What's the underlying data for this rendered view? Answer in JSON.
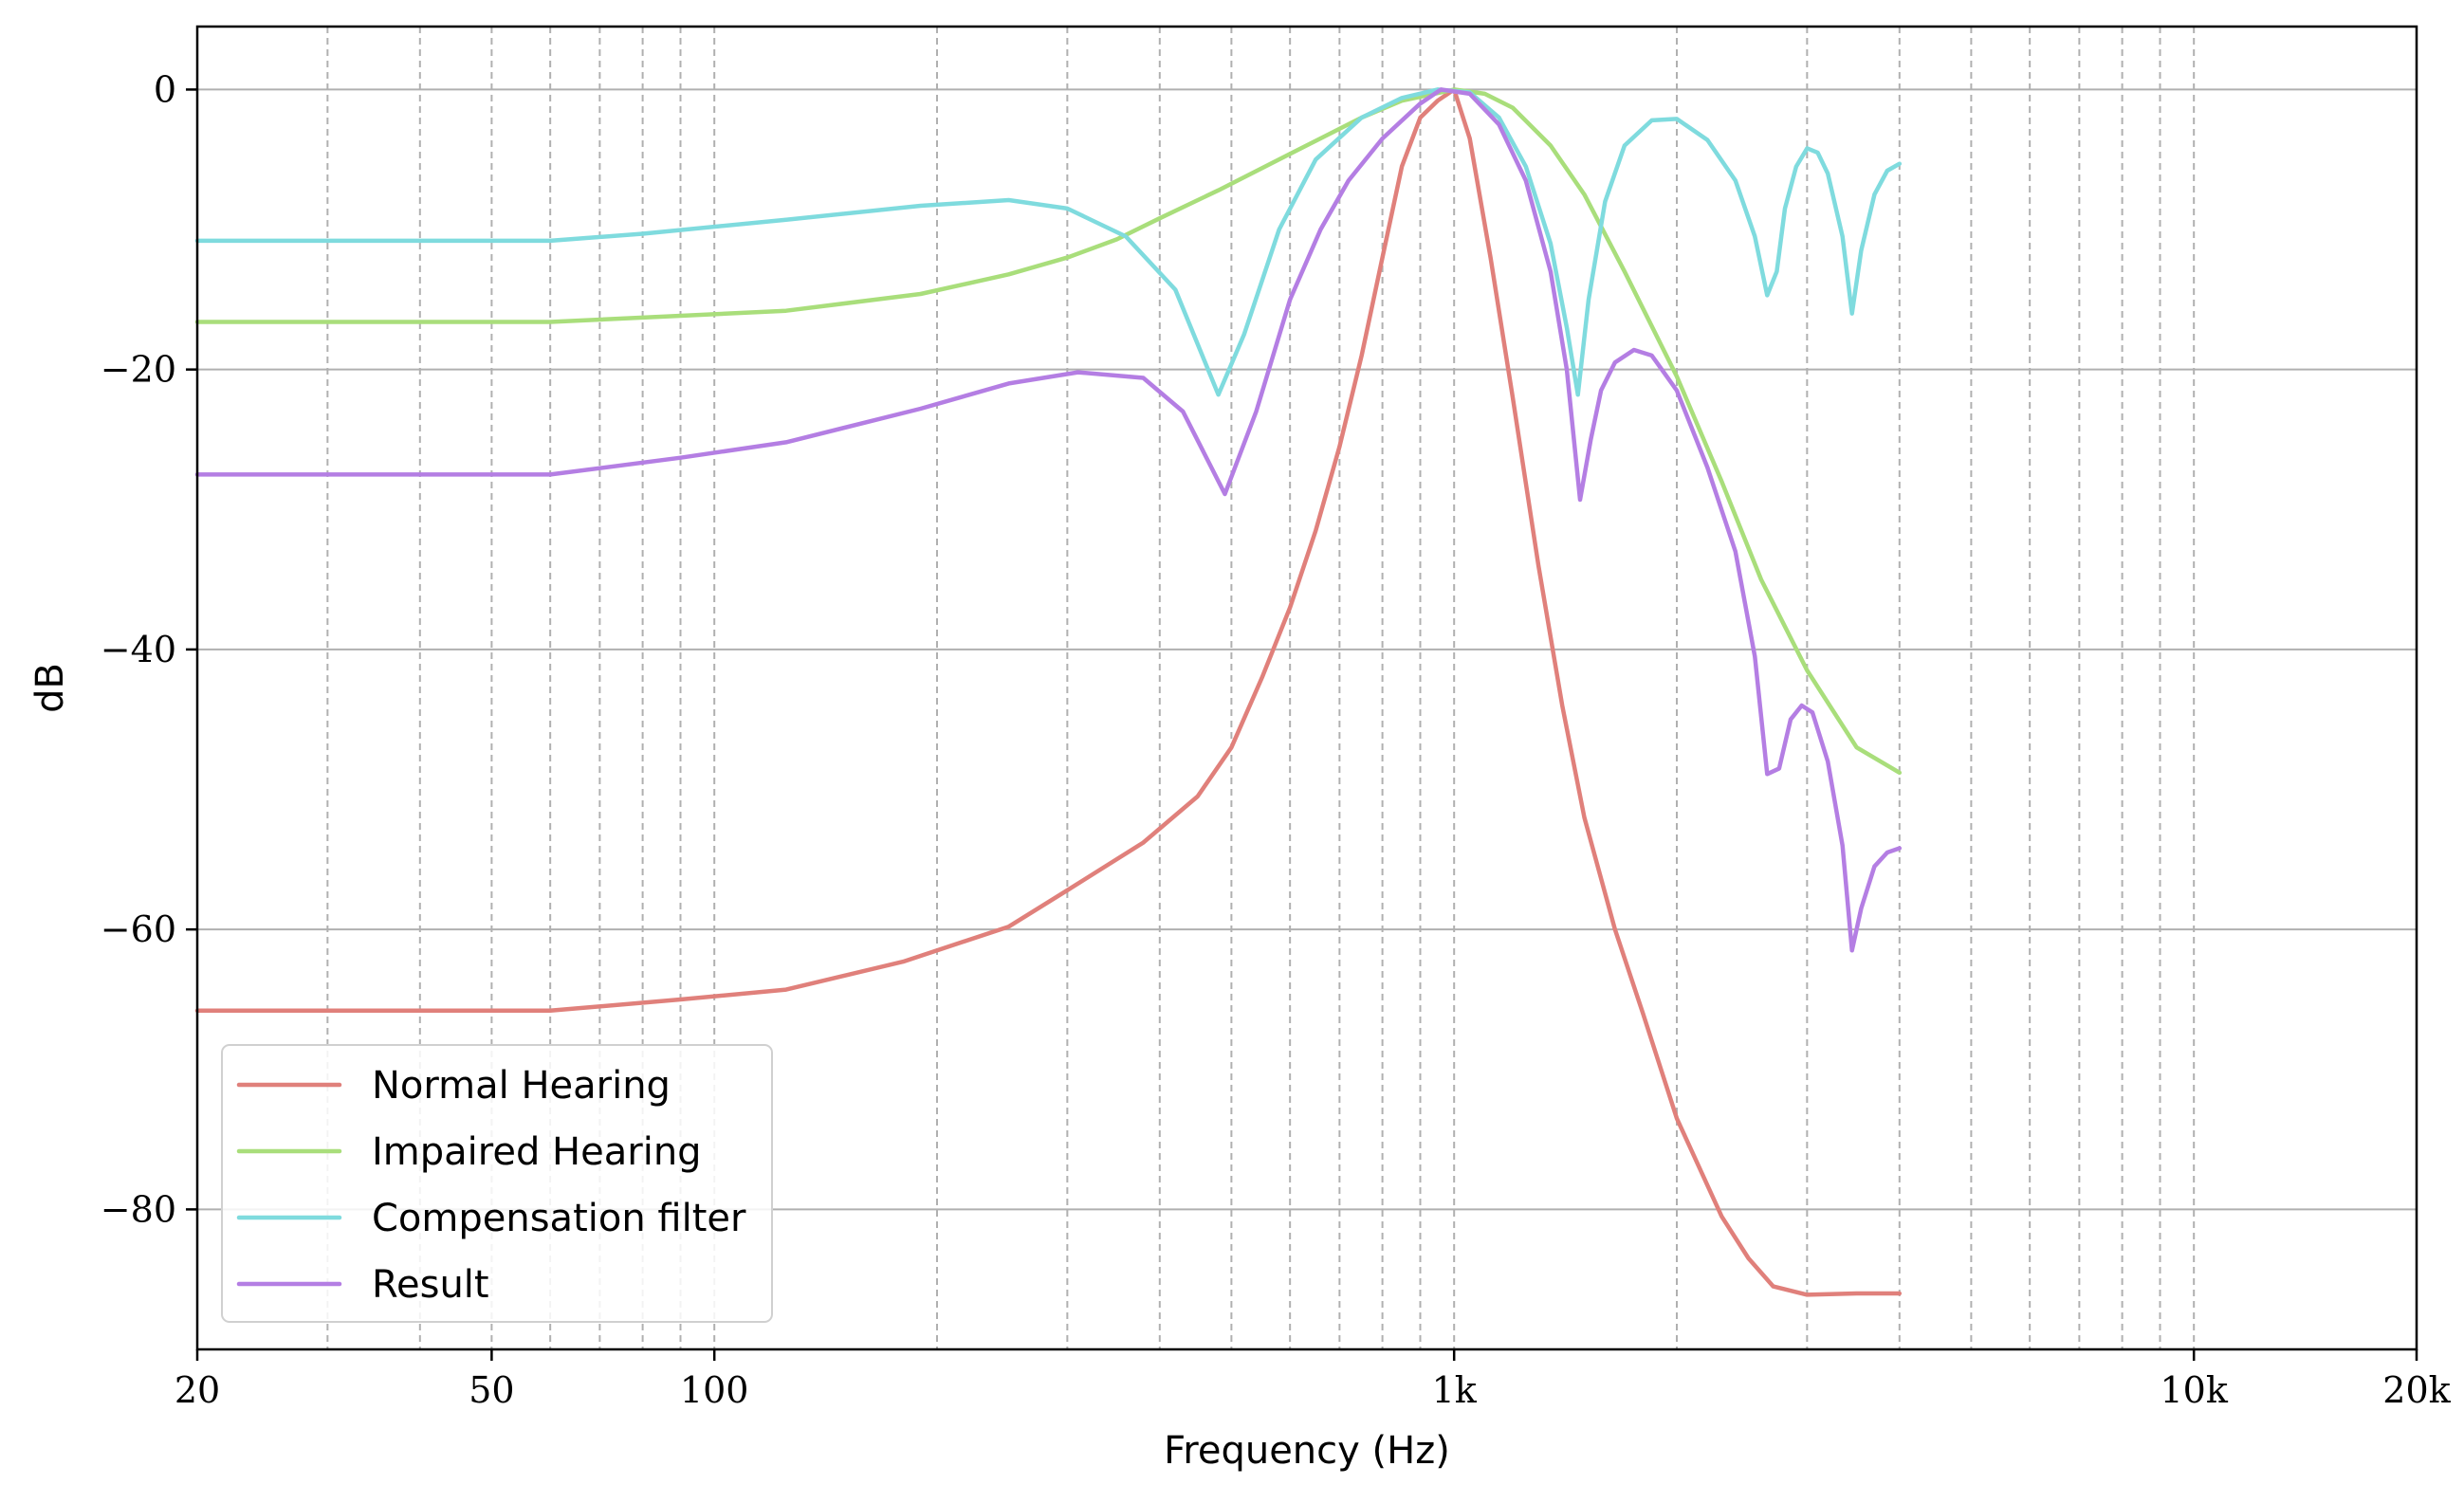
{
  "chart_data": {
    "type": "line",
    "xlabel": "Frequency (Hz)",
    "ylabel": "dB",
    "xscale": "log",
    "xlim": [
      20,
      20000
    ],
    "ylim": [
      -90,
      4.5
    ],
    "x_ticks": [
      {
        "value": 20,
        "label": "20"
      },
      {
        "value": 50,
        "label": "50"
      },
      {
        "value": 100,
        "label": "100"
      },
      {
        "value": 1000,
        "label": "1k"
      },
      {
        "value": 10000,
        "label": "10k"
      },
      {
        "value": 20000,
        "label": "20k"
      }
    ],
    "y_ticks": [
      {
        "value": 0,
        "label": "0"
      },
      {
        "value": -20,
        "label": "−20"
      },
      {
        "value": -40,
        "label": "−40"
      },
      {
        "value": -60,
        "label": "−60"
      },
      {
        "value": -80,
        "label": "−80"
      }
    ],
    "grid": {
      "x_minor_dashed": true,
      "y_major": true
    },
    "legend_position": "lower-left",
    "series": [
      {
        "name": "Normal Hearing",
        "color": "#e0807b",
        "points": [
          [
            20,
            -65.8
          ],
          [
            60,
            -65.8
          ],
          [
            90,
            -65
          ],
          [
            125,
            -64.3
          ],
          [
            180,
            -62.3
          ],
          [
            250,
            -59.8
          ],
          [
            300,
            -57.2
          ],
          [
            380,
            -53.8
          ],
          [
            450,
            -50.5
          ],
          [
            500,
            -47
          ],
          [
            550,
            -42
          ],
          [
            600,
            -37
          ],
          [
            650,
            -31.5
          ],
          [
            700,
            -25.5
          ],
          [
            750,
            -19
          ],
          [
            800,
            -12
          ],
          [
            850,
            -5.5
          ],
          [
            900,
            -2
          ],
          [
            950,
            -0.8
          ],
          [
            1000,
            0
          ],
          [
            1050,
            -3.5
          ],
          [
            1120,
            -12
          ],
          [
            1200,
            -22
          ],
          [
            1300,
            -34
          ],
          [
            1400,
            -44
          ],
          [
            1500,
            -52
          ],
          [
            1650,
            -60
          ],
          [
            1800,
            -66
          ],
          [
            2000,
            -73.5
          ],
          [
            2300,
            -80.5
          ],
          [
            2500,
            -83.5
          ],
          [
            2700,
            -85.5
          ],
          [
            3000,
            -86.1
          ],
          [
            3500,
            -86
          ],
          [
            4000,
            -86
          ]
        ]
      },
      {
        "name": "Impaired Hearing",
        "color": "#a9de7b",
        "points": [
          [
            20,
            -16.6
          ],
          [
            60,
            -16.6
          ],
          [
            125,
            -15.8
          ],
          [
            190,
            -14.6
          ],
          [
            250,
            -13.2
          ],
          [
            300,
            -12
          ],
          [
            350,
            -10.7
          ],
          [
            400,
            -9.2
          ],
          [
            480,
            -7.2
          ],
          [
            600,
            -4.6
          ],
          [
            750,
            -2
          ],
          [
            850,
            -0.8
          ],
          [
            1000,
            0
          ],
          [
            1100,
            -0.3
          ],
          [
            1200,
            -1.3
          ],
          [
            1350,
            -4
          ],
          [
            1500,
            -7.5
          ],
          [
            1700,
            -13
          ],
          [
            2000,
            -20.5
          ],
          [
            2300,
            -28
          ],
          [
            2600,
            -35
          ],
          [
            3000,
            -41.5
          ],
          [
            3500,
            -47
          ],
          [
            4000,
            -48.8
          ]
        ]
      },
      {
        "name": "Compensation filter",
        "color": "#7fdbde",
        "points": [
          [
            20,
            -10.8
          ],
          [
            60,
            -10.8
          ],
          [
            80,
            -10.3
          ],
          [
            125,
            -9.3
          ],
          [
            190,
            -8.3
          ],
          [
            250,
            -7.9
          ],
          [
            300,
            -8.5
          ],
          [
            360,
            -10.5
          ],
          [
            420,
            -14.3
          ],
          [
            480,
            -21.8
          ],
          [
            520,
            -17.5
          ],
          [
            580,
            -10
          ],
          [
            650,
            -5
          ],
          [
            750,
            -2
          ],
          [
            850,
            -0.6
          ],
          [
            950,
            0
          ],
          [
            1050,
            -0.2
          ],
          [
            1150,
            -2
          ],
          [
            1250,
            -5.5
          ],
          [
            1350,
            -11
          ],
          [
            1420,
            -17
          ],
          [
            1470,
            -21.8
          ],
          [
            1520,
            -15
          ],
          [
            1600,
            -8
          ],
          [
            1700,
            -4
          ],
          [
            1850,
            -2.2
          ],
          [
            2000,
            -2.1
          ],
          [
            2200,
            -3.6
          ],
          [
            2400,
            -6.5
          ],
          [
            2550,
            -10.5
          ],
          [
            2650,
            -14.7
          ],
          [
            2730,
            -13
          ],
          [
            2800,
            -8.5
          ],
          [
            2900,
            -5.5
          ],
          [
            3000,
            -4.2
          ],
          [
            3100,
            -4.5
          ],
          [
            3200,
            -6
          ],
          [
            3350,
            -10.5
          ],
          [
            3450,
            -16
          ],
          [
            3550,
            -11.5
          ],
          [
            3700,
            -7.5
          ],
          [
            3850,
            -5.8
          ],
          [
            4000,
            -5.3
          ]
        ]
      },
      {
        "name": "Result",
        "color": "#b47ee3",
        "points": [
          [
            20,
            -27.5
          ],
          [
            60,
            -27.5
          ],
          [
            90,
            -26.3
          ],
          [
            125,
            -25.2
          ],
          [
            190,
            -22.8
          ],
          [
            250,
            -21
          ],
          [
            310,
            -20.2
          ],
          [
            380,
            -20.6
          ],
          [
            430,
            -23
          ],
          [
            490,
            -28.9
          ],
          [
            540,
            -23
          ],
          [
            600,
            -15
          ],
          [
            660,
            -10
          ],
          [
            720,
            -6.5
          ],
          [
            800,
            -3.5
          ],
          [
            900,
            -1
          ],
          [
            960,
            0
          ],
          [
            1050,
            -0.3
          ],
          [
            1150,
            -2.5
          ],
          [
            1250,
            -6.5
          ],
          [
            1350,
            -13
          ],
          [
            1420,
            -20
          ],
          [
            1480,
            -29.3
          ],
          [
            1530,
            -25
          ],
          [
            1580,
            -21.5
          ],
          [
            1650,
            -19.5
          ],
          [
            1750,
            -18.6
          ],
          [
            1850,
            -19
          ],
          [
            2000,
            -21.5
          ],
          [
            2200,
            -27
          ],
          [
            2400,
            -33
          ],
          [
            2550,
            -40.5
          ],
          [
            2650,
            -48.9
          ],
          [
            2750,
            -48.5
          ],
          [
            2850,
            -45
          ],
          [
            2950,
            -44
          ],
          [
            3050,
            -44.5
          ],
          [
            3200,
            -48
          ],
          [
            3350,
            -54
          ],
          [
            3450,
            -61.5
          ],
          [
            3550,
            -58.5
          ],
          [
            3700,
            -55.5
          ],
          [
            3850,
            -54.5
          ],
          [
            4000,
            -54.2
          ]
        ]
      }
    ]
  }
}
